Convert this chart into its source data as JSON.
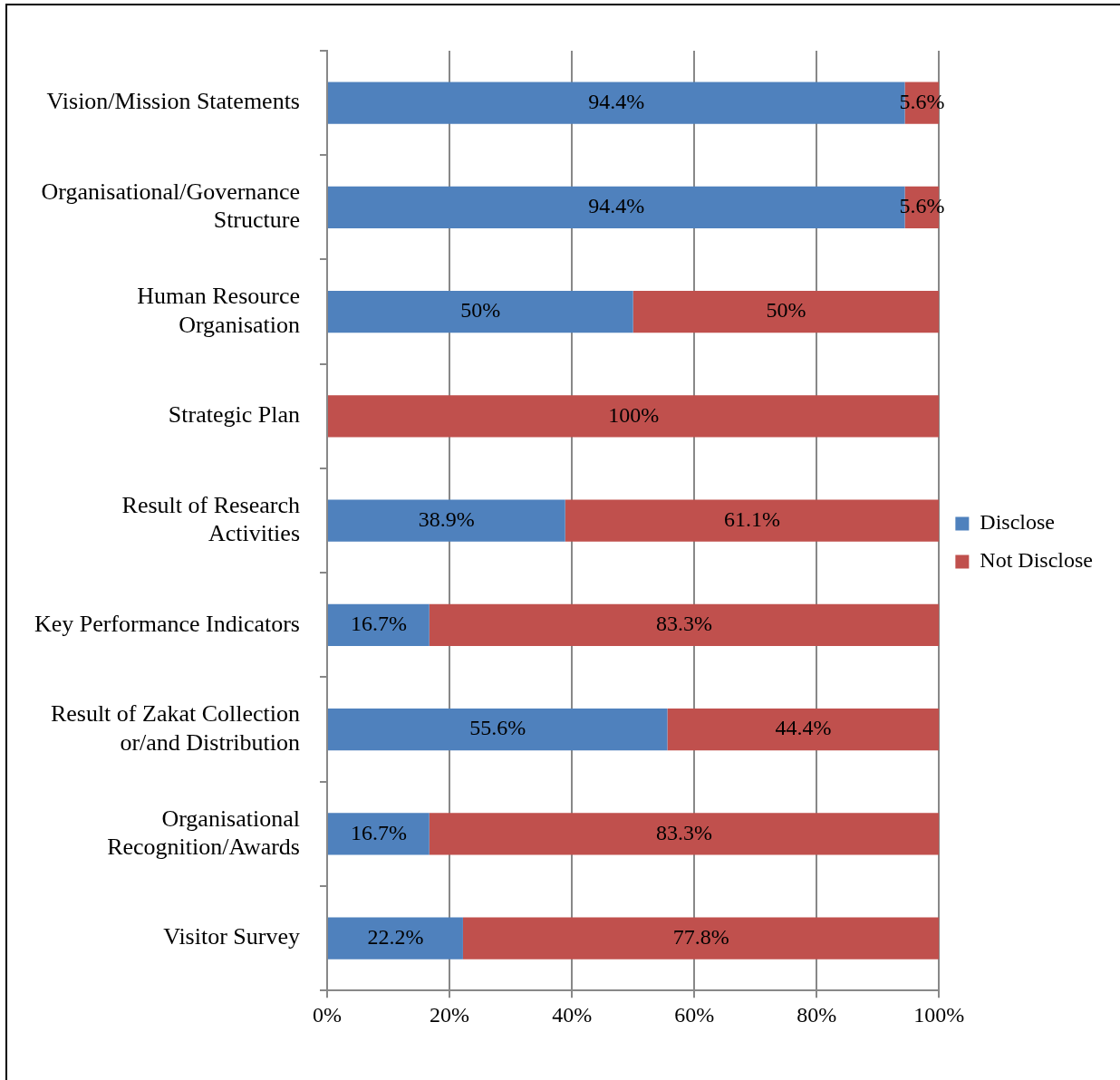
{
  "chart_data": {
    "type": "bar",
    "orientation": "horizontal",
    "stacked": true,
    "categories": [
      "Vision/Mission Statements",
      "Organisational/Governance Structure",
      "Human Resource Organisation",
      "Strategic Plan",
      "Result of Research Activities",
      "Key Performance Indicators",
      "Result of Zakat Collection or/and Distribution",
      "Organisational Recognition/Awards",
      "Visitor Survey"
    ],
    "series": [
      {
        "name": "Disclose",
        "color": "#4f81bd",
        "values": [
          94.4,
          94.4,
          50,
          0,
          38.9,
          16.7,
          55.6,
          16.7,
          22.2
        ],
        "value_labels": [
          "94.4%",
          "94.4%",
          "50%",
          null,
          "38.9%",
          "16.7%",
          "55.6%",
          "16.7%",
          "22.2%"
        ]
      },
      {
        "name": "Not Disclose",
        "color": "#c0504d",
        "values": [
          5.6,
          5.6,
          50,
          100,
          61.1,
          83.3,
          44.4,
          83.3,
          77.8
        ],
        "value_labels": [
          "5.6%",
          "5.6%",
          "50%",
          "100%",
          "61.1%",
          "83.3%",
          "44.4%",
          "83.3%",
          "77.8%"
        ]
      }
    ],
    "xlim": [
      0,
      100
    ],
    "xticks": [
      {
        "value": 0,
        "label": "0%"
      },
      {
        "value": 20,
        "label": "20%"
      },
      {
        "value": 40,
        "label": "40%"
      },
      {
        "value": 60,
        "label": "60%"
      },
      {
        "value": 80,
        "label": "80%"
      },
      {
        "value": 100,
        "label": "100%"
      }
    ],
    "grid": "x",
    "legend": "right"
  }
}
